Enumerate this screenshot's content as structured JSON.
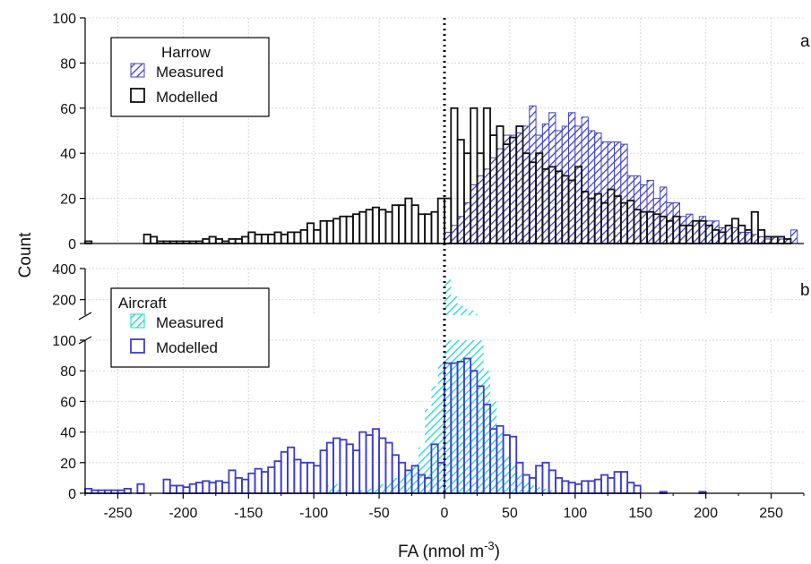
{
  "colors": {
    "harrow_measured": "#4040c8",
    "harrow_modelled": "#111111",
    "aircraft_measured": "#17d6d6",
    "aircraft_modelled": "#3c3cd0",
    "grid": "#d8d8d8",
    "zero_line": "#000000"
  },
  "chart_data": [
    {
      "type": "histogram",
      "panel": "a",
      "legend_title": "Harrow",
      "xlabel": "FA (nmol m-3)",
      "ylabel": "Count",
      "xlim": [
        -275,
        275
      ],
      "ylim": [
        0,
        100
      ],
      "yticks": [
        0,
        20,
        40,
        60,
        80,
        100
      ],
      "grid": true,
      "legend_position": "top-left",
      "bin_width": 5,
      "series": [
        {
          "name": "Measured",
          "style": "hatched",
          "color": "#4040c8",
          "bins": [
            [
              0,
              5
            ],
            [
              5,
              8
            ],
            [
              10,
              12
            ],
            [
              15,
              18
            ],
            [
              20,
              26
            ],
            [
              25,
              30
            ],
            [
              30,
              33
            ],
            [
              35,
              38
            ],
            [
              40,
              42
            ],
            [
              45,
              48
            ],
            [
              50,
              48
            ],
            [
              55,
              49
            ],
            [
              60,
              52
            ],
            [
              65,
              61
            ],
            [
              70,
              48
            ],
            [
              75,
              53
            ],
            [
              80,
              58
            ],
            [
              85,
              50
            ],
            [
              90,
              52
            ],
            [
              95,
              58
            ],
            [
              100,
              52
            ],
            [
              105,
              56
            ],
            [
              110,
              50
            ],
            [
              115,
              49
            ],
            [
              120,
              45
            ],
            [
              125,
              45
            ],
            [
              130,
              45
            ],
            [
              135,
              44
            ],
            [
              140,
              30
            ],
            [
              145,
              30
            ],
            [
              150,
              26
            ],
            [
              155,
              28
            ],
            [
              160,
              20
            ],
            [
              165,
              25
            ],
            [
              170,
              18
            ],
            [
              175,
              18
            ],
            [
              180,
              12
            ],
            [
              185,
              13
            ],
            [
              190,
              10
            ],
            [
              195,
              12
            ],
            [
              200,
              10
            ],
            [
              205,
              10
            ],
            [
              210,
              7
            ],
            [
              215,
              8
            ],
            [
              220,
              7
            ],
            [
              225,
              5
            ],
            [
              230,
              5
            ],
            [
              235,
              4
            ],
            [
              240,
              3
            ],
            [
              245,
              2
            ],
            [
              250,
              3
            ],
            [
              255,
              2
            ],
            [
              260,
              2
            ],
            [
              265,
              6
            ]
          ]
        },
        {
          "name": "Modelled",
          "style": "outline",
          "color": "#111111",
          "bins": [
            [
              -275,
              1
            ],
            [
              -230,
              4
            ],
            [
              -225,
              3
            ],
            [
              -220,
              1
            ],
            [
              -215,
              1
            ],
            [
              -210,
              1
            ],
            [
              -205,
              1
            ],
            [
              -200,
              1
            ],
            [
              -195,
              1
            ],
            [
              -190,
              1
            ],
            [
              -185,
              2
            ],
            [
              -180,
              3
            ],
            [
              -175,
              2
            ],
            [
              -170,
              1
            ],
            [
              -165,
              2
            ],
            [
              -160,
              2
            ],
            [
              -155,
              3
            ],
            [
              -150,
              5
            ],
            [
              -145,
              4
            ],
            [
              -140,
              4
            ],
            [
              -135,
              4
            ],
            [
              -130,
              5
            ],
            [
              -125,
              4
            ],
            [
              -120,
              5
            ],
            [
              -115,
              5
            ],
            [
              -110,
              6
            ],
            [
              -105,
              9
            ],
            [
              -100,
              6
            ],
            [
              -95,
              10
            ],
            [
              -90,
              10
            ],
            [
              -85,
              11
            ],
            [
              -80,
              12
            ],
            [
              -75,
              12
            ],
            [
              -70,
              13
            ],
            [
              -65,
              14
            ],
            [
              -60,
              15
            ],
            [
              -55,
              16
            ],
            [
              -50,
              15
            ],
            [
              -45,
              14
            ],
            [
              -40,
              17
            ],
            [
              -35,
              17
            ],
            [
              -30,
              20
            ],
            [
              -25,
              17
            ],
            [
              -20,
              13
            ],
            [
              -15,
              13
            ],
            [
              -10,
              14
            ],
            [
              -5,
              20
            ],
            [
              0,
              20
            ],
            [
              5,
              60
            ],
            [
              10,
              46
            ],
            [
              15,
              40
            ],
            [
              20,
              60
            ],
            [
              25,
              40
            ],
            [
              30,
              60
            ],
            [
              35,
              48
            ],
            [
              40,
              52
            ],
            [
              45,
              44
            ],
            [
              50,
              47
            ],
            [
              55,
              52
            ],
            [
              60,
              40
            ],
            [
              65,
              36
            ],
            [
              70,
              40
            ],
            [
              75,
              33
            ],
            [
              80,
              34
            ],
            [
              85,
              32
            ],
            [
              90,
              30
            ],
            [
              95,
              28
            ],
            [
              100,
              34
            ],
            [
              105,
              23
            ],
            [
              110,
              20
            ],
            [
              115,
              22
            ],
            [
              120,
              18
            ],
            [
              125,
              24
            ],
            [
              130,
              21
            ],
            [
              135,
              18
            ],
            [
              140,
              19
            ],
            [
              145,
              15
            ],
            [
              150,
              14
            ],
            [
              155,
              14
            ],
            [
              160,
              13
            ],
            [
              165,
              12
            ],
            [
              170,
              10
            ],
            [
              175,
              12
            ],
            [
              180,
              8
            ],
            [
              185,
              8
            ],
            [
              190,
              10
            ],
            [
              195,
              10
            ],
            [
              200,
              8
            ],
            [
              205,
              6
            ],
            [
              210,
              5
            ],
            [
              215,
              8
            ],
            [
              220,
              11
            ],
            [
              225,
              8
            ],
            [
              230,
              6
            ],
            [
              235,
              14
            ],
            [
              240,
              6
            ],
            [
              245,
              3
            ],
            [
              250,
              3
            ],
            [
              255,
              3
            ],
            [
              260,
              2
            ]
          ]
        }
      ]
    },
    {
      "type": "histogram",
      "panel": "b",
      "legend_title": "Aircraft",
      "xlabel": "FA (nmol m-3)",
      "ylabel": "Count",
      "xlim": [
        -275,
        275
      ],
      "ylim_lower": [
        0,
        100
      ],
      "ylim_upper": [
        100,
        400
      ],
      "yticks_lower": [
        0,
        20,
        40,
        60,
        80,
        100
      ],
      "yticks_upper": [
        200,
        400
      ],
      "broken_axis": true,
      "grid": true,
      "legend_position": "top-left",
      "bin_width": 5,
      "series": [
        {
          "name": "Measured",
          "style": "hatched",
          "color": "#17d6d6",
          "bins": [
            [
              -5,
              85
            ],
            [
              0,
              330
            ],
            [
              5,
              220
            ],
            [
              10,
              160
            ],
            [
              15,
              140
            ],
            [
              20,
              130
            ],
            [
              25,
              100
            ],
            [
              30,
              80
            ],
            [
              35,
              60
            ],
            [
              40,
              40
            ],
            [
              45,
              25
            ],
            [
              50,
              20
            ],
            [
              55,
              12
            ],
            [
              60,
              8
            ],
            [
              65,
              5
            ],
            [
              70,
              4
            ],
            [
              75,
              3
            ],
            [
              80,
              2
            ],
            [
              -10,
              70
            ],
            [
              -15,
              55
            ],
            [
              -20,
              30
            ],
            [
              -25,
              20
            ],
            [
              -30,
              15
            ],
            [
              -35,
              12
            ],
            [
              -40,
              10
            ],
            [
              -45,
              8
            ],
            [
              -50,
              6
            ],
            [
              -55,
              4
            ],
            [
              -60,
              3
            ],
            [
              -65,
              2
            ],
            [
              -70,
              2
            ],
            [
              -75,
              1
            ],
            [
              -80,
              1
            ],
            [
              -85,
              6
            ],
            [
              -90,
              5
            ]
          ]
        },
        {
          "name": "Modelled",
          "style": "outline",
          "color": "#3c3cd0",
          "bins": [
            [
              -275,
              3
            ],
            [
              -270,
              2
            ],
            [
              -265,
              2
            ],
            [
              -260,
              2
            ],
            [
              -255,
              2
            ],
            [
              -250,
              2
            ],
            [
              -245,
              3
            ],
            [
              -235,
              6
            ],
            [
              -215,
              9
            ],
            [
              -210,
              5
            ],
            [
              -205,
              5
            ],
            [
              -200,
              4
            ],
            [
              -195,
              6
            ],
            [
              -190,
              7
            ],
            [
              -185,
              8
            ],
            [
              -180,
              7
            ],
            [
              -175,
              8
            ],
            [
              -170,
              7
            ],
            [
              -165,
              15
            ],
            [
              -160,
              10
            ],
            [
              -155,
              9
            ],
            [
              -150,
              13
            ],
            [
              -145,
              16
            ],
            [
              -140,
              14
            ],
            [
              -135,
              17
            ],
            [
              -130,
              21
            ],
            [
              -125,
              27
            ],
            [
              -120,
              30
            ],
            [
              -115,
              22
            ],
            [
              -110,
              20
            ],
            [
              -105,
              20
            ],
            [
              -100,
              18
            ],
            [
              -95,
              28
            ],
            [
              -90,
              33
            ],
            [
              -85,
              36
            ],
            [
              -80,
              35
            ],
            [
              -75,
              32
            ],
            [
              -70,
              28
            ],
            [
              -65,
              40
            ],
            [
              -60,
              38
            ],
            [
              -55,
              42
            ],
            [
              -50,
              36
            ],
            [
              -45,
              33
            ],
            [
              -40,
              25
            ],
            [
              -35,
              20
            ],
            [
              -30,
              15
            ],
            [
              -25,
              18
            ],
            [
              -20,
              12
            ],
            [
              -15,
              10
            ],
            [
              -10,
              32
            ],
            [
              -5,
              20
            ],
            [
              0,
              85
            ],
            [
              5,
              85
            ],
            [
              10,
              86
            ],
            [
              15,
              88
            ],
            [
              20,
              80
            ],
            [
              25,
              70
            ],
            [
              30,
              58
            ],
            [
              35,
              42
            ],
            [
              40,
              44
            ],
            [
              45,
              38
            ],
            [
              50,
              37
            ],
            [
              55,
              20
            ],
            [
              60,
              12
            ],
            [
              65,
              10
            ],
            [
              70,
              18
            ],
            [
              75,
              20
            ],
            [
              80,
              15
            ],
            [
              85,
              10
            ],
            [
              90,
              8
            ],
            [
              95,
              7
            ],
            [
              100,
              6
            ],
            [
              105,
              8
            ],
            [
              110,
              8
            ],
            [
              115,
              9
            ],
            [
              120,
              12
            ],
            [
              125,
              10
            ],
            [
              130,
              14
            ],
            [
              135,
              14
            ],
            [
              140,
              7
            ],
            [
              145,
              5
            ],
            [
              165,
              1
            ],
            [
              195,
              1
            ]
          ]
        }
      ]
    }
  ],
  "text": {
    "y_title": "Count",
    "x_title_main": "FA (nmol m",
    "x_title_sup": "-3",
    "x_title_close": ")",
    "letter_a": "a",
    "letter_b": "b"
  }
}
